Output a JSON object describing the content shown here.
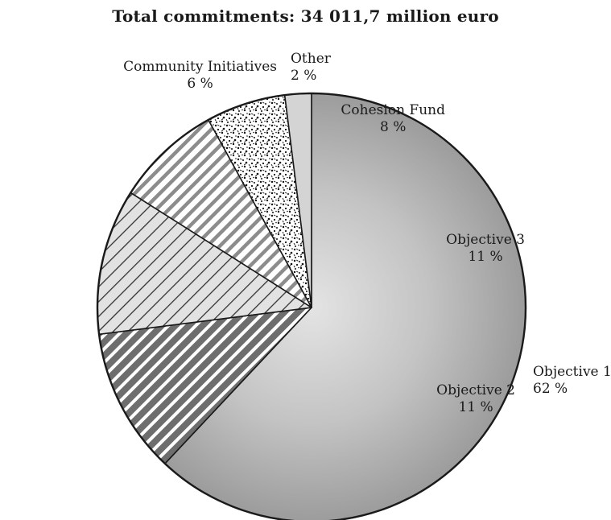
{
  "chart_data": {
    "type": "pie",
    "title": "Total commitments: 34 011,7 million euro",
    "slices": [
      {
        "name": "Objective 1",
        "value": 62,
        "value_label": "62 %",
        "fill": "#bdbdbd",
        "pattern": "radial-gray"
      },
      {
        "name": "Objective 2",
        "value": 11,
        "value_label": "11 %",
        "fill": "#7a7a7a",
        "pattern": "dark-diagonal-stripes"
      },
      {
        "name": "Objective 3",
        "value": 11,
        "value_label": "11 %",
        "fill": "#dddddd",
        "pattern": "light-diagonal-hatch"
      },
      {
        "name": "Cohesion Fund",
        "value": 8,
        "value_label": "8 %",
        "fill": "#a9a9a9",
        "pattern": "bold-diagonal-stripes"
      },
      {
        "name": "Community Initiatives",
        "value": 6,
        "value_label": "6 %",
        "fill": "#ffffff",
        "pattern": "speckled"
      },
      {
        "name": "Other",
        "value": 2,
        "value_label": "2 %",
        "fill": "#d4d4d4",
        "pattern": "solid"
      }
    ],
    "start": "12 o'clock",
    "direction": "clockwise"
  }
}
